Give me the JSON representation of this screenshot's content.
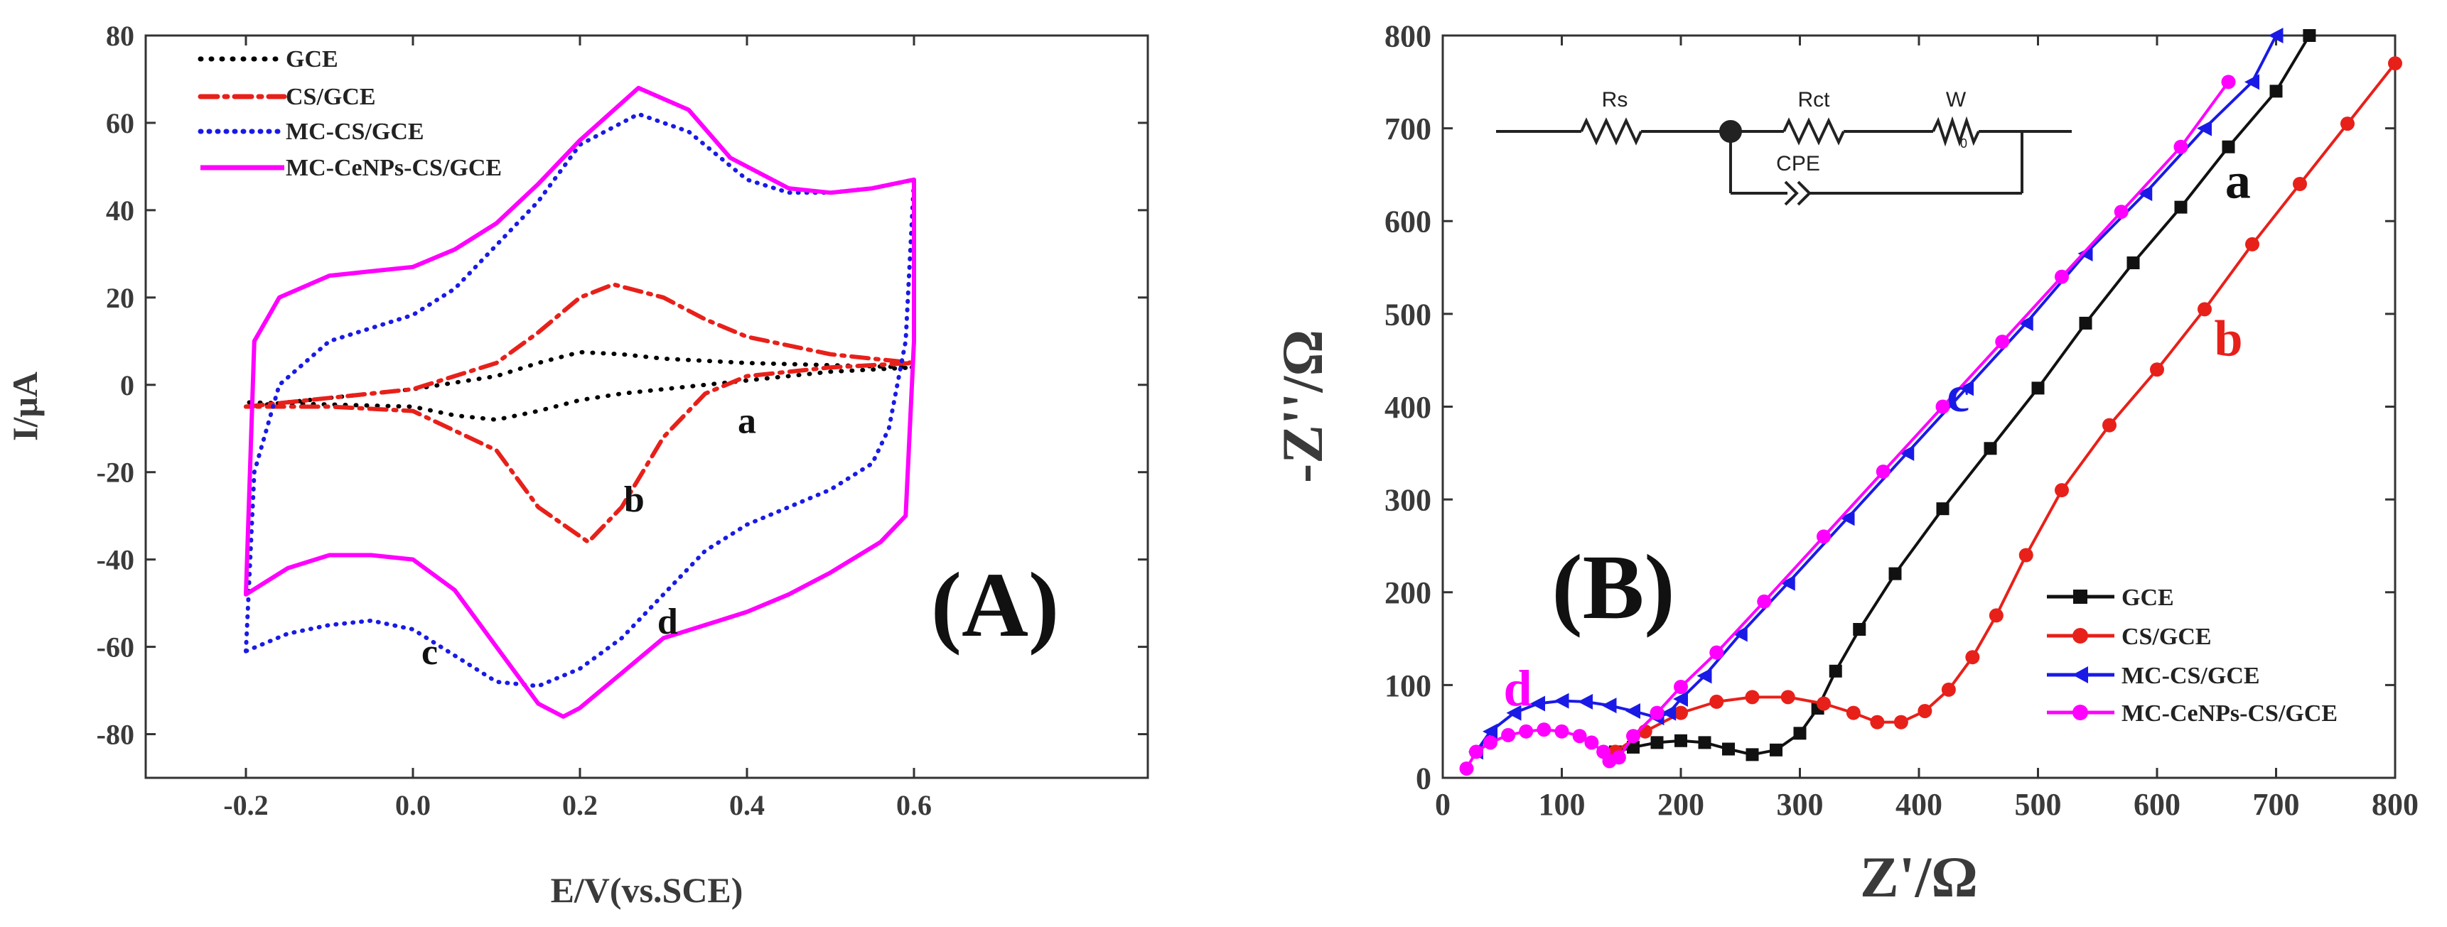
{
  "chart_data": [
    {
      "type": "line",
      "panel_label": "(A)",
      "xlabel": "E/V(vs.SCE)",
      "ylabel": "I/μA",
      "xlim": [
        -0.32,
        0.88
      ],
      "ylim": [
        -90,
        80
      ],
      "xticks": [
        -0.2,
        0.0,
        0.2,
        0.4,
        0.6
      ],
      "xtick_labels": [
        "-0.2",
        "0.0",
        "0.2",
        "0.4",
        "0.6"
      ],
      "yticks": [
        -80,
        -60,
        -40,
        -20,
        0,
        20,
        40,
        60,
        80
      ],
      "ytick_labels": [
        "-80",
        "-60",
        "-40",
        "-20",
        "0",
        "20",
        "40",
        "60",
        "80"
      ],
      "grid": false,
      "legend_position": "top-left",
      "series": [
        {
          "name": "GCE",
          "label": "a",
          "color": "#000000",
          "style": "dot",
          "x": [
            -0.2,
            -0.1,
            0.0,
            0.1,
            0.15,
            0.2,
            0.25,
            0.3,
            0.4,
            0.5,
            0.6,
            0.5,
            0.4,
            0.3,
            0.25,
            0.2,
            0.15,
            0.1,
            0.05,
            0.0,
            -0.1,
            -0.2
          ],
          "y": [
            -5,
            -3,
            -1,
            2,
            5,
            7.5,
            7,
            6,
            5,
            4.5,
            4,
            3,
            1,
            -1,
            -2,
            -3.5,
            -6,
            -8,
            -7,
            -5,
            -4.5,
            -4
          ]
        },
        {
          "name": "CS/GCE",
          "label": "b",
          "color": "#e8201a",
          "style": "dashdot",
          "x": [
            -0.2,
            -0.1,
            0.0,
            0.1,
            0.15,
            0.2,
            0.24,
            0.3,
            0.35,
            0.4,
            0.5,
            0.6,
            0.5,
            0.4,
            0.35,
            0.3,
            0.25,
            0.21,
            0.15,
            0.1,
            0.0,
            -0.1,
            -0.2
          ],
          "y": [
            -5,
            -3,
            -1,
            5,
            12,
            20,
            23,
            20,
            15,
            11,
            7,
            5,
            4,
            2,
            -2,
            -12,
            -28,
            -36,
            -28,
            -15,
            -6,
            -5,
            -5
          ]
        },
        {
          "name": "MC-CS/GCE",
          "label": "c",
          "color": "#1a1ae6",
          "style": "dot",
          "x": [
            -0.2,
            -0.19,
            -0.16,
            -0.1,
            -0.05,
            0.0,
            0.05,
            0.1,
            0.15,
            0.2,
            0.27,
            0.33,
            0.4,
            0.45,
            0.5,
            0.55,
            0.6,
            0.59,
            0.57,
            0.55,
            0.5,
            0.45,
            0.4,
            0.35,
            0.3,
            0.25,
            0.2,
            0.15,
            0.1,
            0.05,
            0.0,
            -0.05,
            -0.1,
            -0.15,
            -0.2
          ],
          "y": [
            -61,
            -20,
            0,
            10,
            13,
            16,
            22,
            32,
            42,
            55,
            62,
            58,
            47,
            44,
            44,
            45,
            47,
            10,
            -10,
            -18,
            -24,
            -28,
            -32,
            -38,
            -48,
            -58,
            -65,
            -69,
            -68,
            -62,
            -56,
            -54,
            -55,
            -57,
            -61
          ]
        },
        {
          "name": "MC-CeNPs-CS/GCE",
          "label": "d",
          "color": "#ff00ff",
          "style": "solid",
          "x": [
            -0.2,
            -0.19,
            -0.16,
            -0.1,
            -0.05,
            0.0,
            0.05,
            0.1,
            0.15,
            0.2,
            0.27,
            0.33,
            0.38,
            0.45,
            0.5,
            0.55,
            0.6,
            0.6,
            0.59,
            0.56,
            0.5,
            0.45,
            0.4,
            0.35,
            0.3,
            0.25,
            0.2,
            0.18,
            0.15,
            0.1,
            0.05,
            0.0,
            -0.05,
            -0.1,
            -0.15,
            -0.2
          ],
          "y": [
            -48,
            10,
            20,
            25,
            26,
            27,
            31,
            37,
            46,
            56,
            68,
            63,
            52,
            45,
            44,
            45,
            47,
            10,
            -30,
            -36,
            -43,
            -48,
            -52,
            -55,
            -58,
            -66,
            -74,
            -76,
            -73,
            -60,
            -47,
            -40,
            -39,
            -39,
            -42,
            -48
          ]
        }
      ],
      "annotations": [
        {
          "text": "a",
          "x": 0.4,
          "y": -11,
          "color": "#111111"
        },
        {
          "text": "b",
          "x": 0.265,
          "y": -29,
          "color": "#111111"
        },
        {
          "text": "c",
          "x": 0.02,
          "y": -64,
          "color": "#111111"
        },
        {
          "text": "d",
          "x": 0.305,
          "y": -57,
          "color": "#111111"
        }
      ]
    },
    {
      "type": "line",
      "panel_label": "(B)",
      "xlabel": "Z'/Ω",
      "ylabel": "-Z''/Ω",
      "xlim": [
        0,
        800
      ],
      "ylim": [
        0,
        800
      ],
      "xticks": [
        0,
        100,
        200,
        300,
        400,
        500,
        600,
        700,
        800
      ],
      "xtick_labels": [
        "0",
        "100",
        "200",
        "300",
        "400",
        "500",
        "600",
        "700",
        "800"
      ],
      "yticks": [
        0,
        100,
        200,
        300,
        400,
        500,
        600,
        700,
        800
      ],
      "ytick_labels": [
        "0",
        "100",
        "200",
        "300",
        "400",
        "500",
        "600",
        "700",
        "800"
      ],
      "grid": false,
      "legend_position": "bottom-right",
      "series": [
        {
          "name": "GCE",
          "label": "a",
          "color": "#111111",
          "marker": "square",
          "x": [
            145,
            160,
            180,
            200,
            220,
            240,
            260,
            280,
            300,
            315,
            330,
            350,
            380,
            420,
            460,
            500,
            540,
            580,
            620,
            660,
            700,
            728
          ],
          "y": [
            28,
            33,
            38,
            40,
            38,
            31,
            25,
            30,
            48,
            75,
            115,
            160,
            220,
            290,
            355,
            420,
            490,
            555,
            615,
            680,
            740,
            800
          ]
        },
        {
          "name": "CS/GCE",
          "label": "b",
          "color": "#e8201a",
          "marker": "circle",
          "x": [
            145,
            170,
            200,
            230,
            260,
            290,
            320,
            345,
            365,
            385,
            405,
            425,
            445,
            465,
            490,
            520,
            560,
            600,
            640,
            680,
            720,
            760,
            800
          ],
          "y": [
            28,
            50,
            70,
            82,
            87,
            87,
            80,
            70,
            60,
            60,
            72,
            95,
            130,
            175,
            240,
            310,
            380,
            440,
            505,
            575,
            640,
            705,
            770
          ]
        },
        {
          "name": "MC-CS/GCE",
          "label": "c",
          "color": "#1a1ae6",
          "marker": "triangle-left",
          "x": [
            28,
            40,
            60,
            80,
            100,
            120,
            140,
            160,
            180,
            190,
            200,
            220,
            250,
            290,
            340,
            390,
            440,
            490,
            540,
            590,
            640,
            680,
            700
          ],
          "y": [
            28,
            50,
            70,
            80,
            83,
            82,
            78,
            72,
            65,
            70,
            85,
            110,
            155,
            210,
            280,
            350,
            420,
            490,
            565,
            630,
            700,
            750,
            800
          ]
        },
        {
          "name": "MC-CeNPs-CS/GCE",
          "label": "d",
          "color": "#ff00ff",
          "marker": "circle",
          "x": [
            20,
            28,
            40,
            55,
            70,
            85,
            100,
            115,
            125,
            135,
            140,
            148,
            160,
            180,
            200,
            230,
            270,
            320,
            370,
            420,
            470,
            520,
            570,
            620,
            660
          ],
          "y": [
            10,
            28,
            38,
            46,
            50,
            52,
            50,
            45,
            38,
            28,
            18,
            22,
            45,
            70,
            98,
            135,
            190,
            260,
            330,
            400,
            470,
            540,
            610,
            680,
            750
          ]
        }
      ],
      "annotations": [
        {
          "text": "a",
          "x": 668,
          "y": 625,
          "color": "#111111"
        },
        {
          "text": "b",
          "x": 660,
          "y": 455,
          "color": "#e8201a"
        },
        {
          "text": "c",
          "x": 433,
          "y": 395,
          "color": "#1a1ae6"
        },
        {
          "text": "d",
          "x": 63,
          "y": 78,
          "color": "#ff00ff"
        }
      ],
      "inset_circuit": {
        "labels": [
          "Rs",
          "Rct",
          "W",
          "CPE"
        ],
        "subscript": "0"
      }
    }
  ]
}
